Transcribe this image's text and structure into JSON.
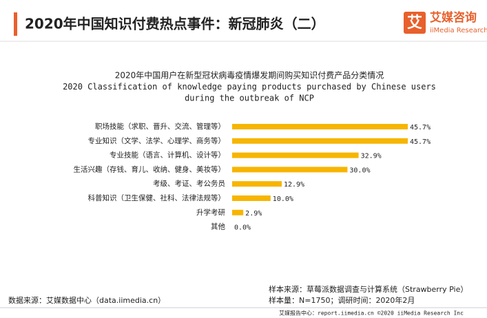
{
  "header": {
    "title": "2020年中国知识付费热点事件：新冠肺炎（二）",
    "logo_icon": "艾",
    "logo_name": "艾媒咨询",
    "logo_sub": "iiMedia Research"
  },
  "chart_data": {
    "type": "bar",
    "orientation": "horizontal",
    "title_lines": [
      "2020年中国用户在新型冠状病毒疫情爆发期间购买知识付费产品分类情况",
      "2020 Classification of knowledge paying products purchased by Chinese users",
      "during the outbreak of NCP"
    ],
    "categories": [
      "职场技能（求职、晋升、交流、管理等）",
      "专业知识（文学、法学、心理学、商务等）",
      "专业技能（语言、计算机、设计等）",
      "生活兴趣（存钱、育儿、收纳、健身、美妆等）",
      "考级、考证、考公务员",
      "科普知识（卫生保健、社科、法律法规等）",
      "升学考研",
      "其他"
    ],
    "values": [
      45.7,
      45.7,
      32.9,
      30.0,
      12.9,
      10.0,
      2.9,
      0.0
    ],
    "value_labels": [
      "45.7%",
      "45.7%",
      "32.9%",
      "30.0%",
      "12.9%",
      "10.0%",
      "2.9%",
      "0.0%"
    ],
    "color": "#f7b500"
  },
  "footer": {
    "source": "数据来源：艾媒数据中心（data.iimedia.cn）",
    "sample_source": "样本来源：草莓派数据调查与计算系统（Strawberry Pie）",
    "sample_size": "样本量：N=1750；调研时间：2020年2月",
    "strip": "艾媒报告中心：report.iimedia.cn   ©2020   iiMedia Research  Inc"
  }
}
